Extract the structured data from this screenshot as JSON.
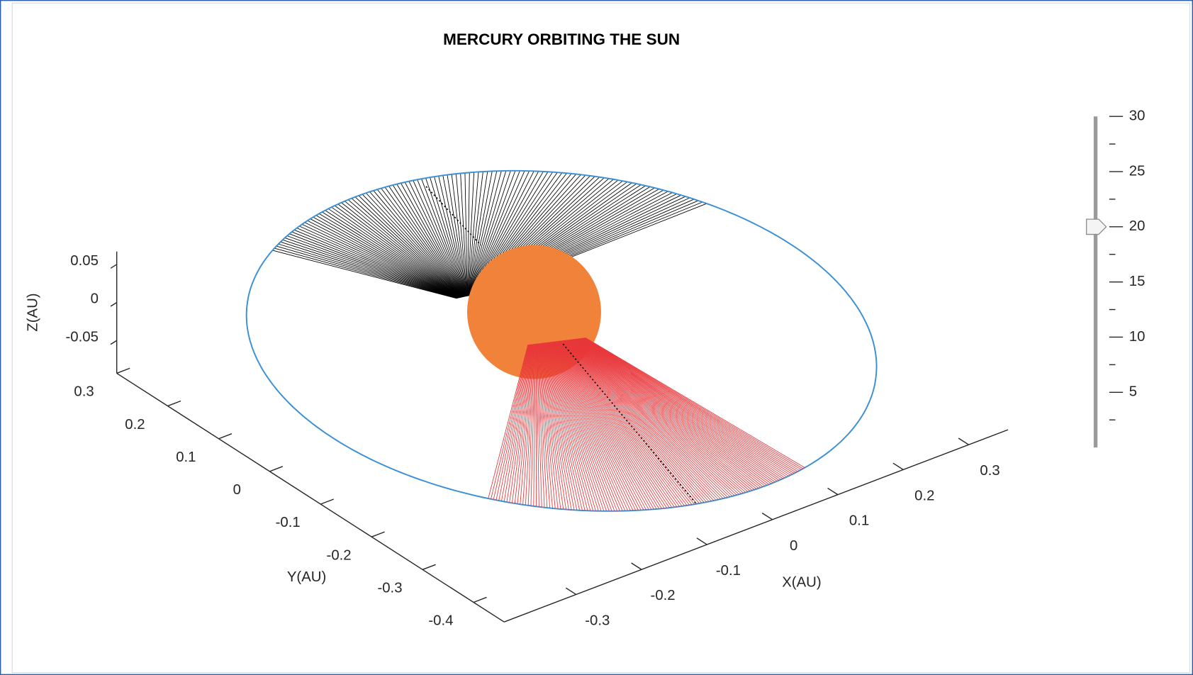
{
  "chart_data": {
    "type": "orbit3d",
    "title": "MERCURY ORBITING THE SUN",
    "xlabel": "X(AU)",
    "ylabel": "Y(AU)",
    "zlabel": "Z(AU)",
    "xlim": [
      -0.41,
      0.36
    ],
    "ylim": [
      -0.46,
      0.3
    ],
    "zlim": [
      -0.093,
      0.067
    ],
    "xticks": [
      -0.3,
      -0.2,
      -0.1,
      0,
      0.1,
      0.2,
      0.3
    ],
    "yticks": [
      -0.4,
      -0.3,
      -0.2,
      -0.1,
      0,
      0.1,
      0.2,
      0.3
    ],
    "zticks": [
      -0.05,
      0,
      0.05
    ],
    "orbit_color": "#3a8fd6",
    "sun_color": "#f0823a",
    "past_color": "#000000",
    "future_color": "#e8363a"
  },
  "slider": {
    "lim": [
      0,
      30
    ],
    "ticks": [
      5,
      10,
      15,
      20,
      25,
      30
    ],
    "minor_ticks": [
      2.5,
      7.5,
      12.5,
      17.5,
      22.5,
      27.5
    ],
    "value": 20
  }
}
